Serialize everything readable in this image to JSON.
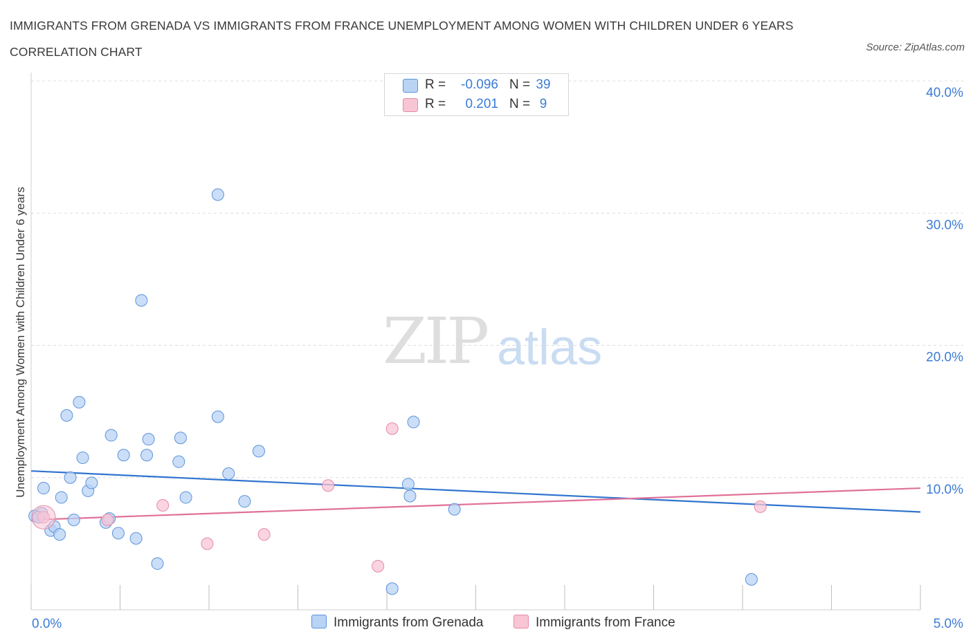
{
  "title": "IMMIGRANTS FROM GRENADA VS IMMIGRANTS FROM FRANCE UNEMPLOYMENT AMONG WOMEN WITH CHILDREN UNDER 6 YEARS CORRELATION CHART",
  "source": "Source: ZipAtlas.com",
  "watermark": {
    "zip": "ZIP",
    "atlas": "atlas"
  },
  "legend": {
    "rows": [
      {
        "r_label": "R =",
        "r_value": "-0.096",
        "n_label": "N =",
        "n_value": "39"
      },
      {
        "r_label": "R =",
        "r_value": "0.201",
        "n_label": "N =",
        "n_value": "9"
      }
    ]
  },
  "colors": {
    "grenada_fill": "#b9d3f5",
    "grenada_edge": "#5b93d8",
    "grenada_line": "#2f74cf",
    "france_fill": "#f8c5d5",
    "france_edge": "#e58aa8",
    "france_line": "#e07099",
    "tick_label": "#3a7bd5",
    "grid": "#dcdcdc"
  },
  "chart_data": {
    "type": "scatter",
    "title": "IMMIGRANTS FROM GRENADA VS IMMIGRANTS FROM FRANCE UNEMPLOYMENT AMONG WOMEN WITH CHILDREN UNDER 6 YEARS CORRELATION CHART",
    "xlabel": "",
    "ylabel": "Unemployment Among Women with Children Under 6 years",
    "xlim": [
      0,
      5.0
    ],
    "ylim": [
      0,
      40.0
    ],
    "x_tick_labels": [
      "0.0%",
      "5.0%"
    ],
    "y_tick_labels": [
      "10.0%",
      "20.0%",
      "30.0%",
      "40.0%"
    ],
    "y_ticks": [
      10,
      20,
      30,
      40
    ],
    "grid": true,
    "series": [
      {
        "name": "Immigrants from Grenada",
        "R": -0.096,
        "N": 39,
        "trend": [
          [
            0,
            10.5
          ],
          [
            5.0,
            7.4
          ]
        ],
        "points": [
          [
            0.02,
            7.1
          ],
          [
            0.06,
            7.3
          ],
          [
            0.07,
            9.2
          ],
          [
            0.11,
            6.0
          ],
          [
            0.13,
            6.3
          ],
          [
            0.16,
            5.7
          ],
          [
            0.17,
            8.5
          ],
          [
            0.2,
            14.7
          ],
          [
            0.22,
            10.0
          ],
          [
            0.24,
            6.8
          ],
          [
            0.27,
            15.7
          ],
          [
            0.29,
            11.5
          ],
          [
            0.32,
            9.0
          ],
          [
            0.34,
            9.6
          ],
          [
            0.42,
            6.6
          ],
          [
            0.44,
            6.9
          ],
          [
            0.45,
            13.2
          ],
          [
            0.49,
            5.8
          ],
          [
            0.52,
            11.7
          ],
          [
            0.59,
            5.4
          ],
          [
            0.62,
            23.4
          ],
          [
            0.65,
            11.7
          ],
          [
            0.66,
            12.9
          ],
          [
            0.71,
            3.5
          ],
          [
            0.83,
            11.2
          ],
          [
            0.84,
            13.0
          ],
          [
            0.87,
            8.5
          ],
          [
            1.05,
            14.6
          ],
          [
            1.05,
            31.4
          ],
          [
            1.11,
            10.3
          ],
          [
            1.2,
            8.2
          ],
          [
            1.28,
            12.0
          ],
          [
            2.03,
            1.6
          ],
          [
            2.12,
            9.5
          ],
          [
            2.13,
            8.6
          ],
          [
            2.15,
            14.2
          ],
          [
            2.38,
            7.6
          ],
          [
            4.05,
            2.3
          ],
          [
            0.04,
            7.0
          ]
        ]
      },
      {
        "name": "Immigrants from France",
        "R": 0.201,
        "N": 9,
        "trend": [
          [
            0,
            6.8
          ],
          [
            5.0,
            9.2
          ]
        ],
        "points": [
          [
            0.07,
            7.0
          ],
          [
            0.43,
            6.8
          ],
          [
            0.74,
            7.9
          ],
          [
            0.99,
            5.0
          ],
          [
            1.31,
            5.7
          ],
          [
            1.67,
            9.4
          ],
          [
            1.95,
            3.3
          ],
          [
            2.03,
            13.7
          ],
          [
            4.1,
            7.8
          ]
        ]
      }
    ]
  }
}
